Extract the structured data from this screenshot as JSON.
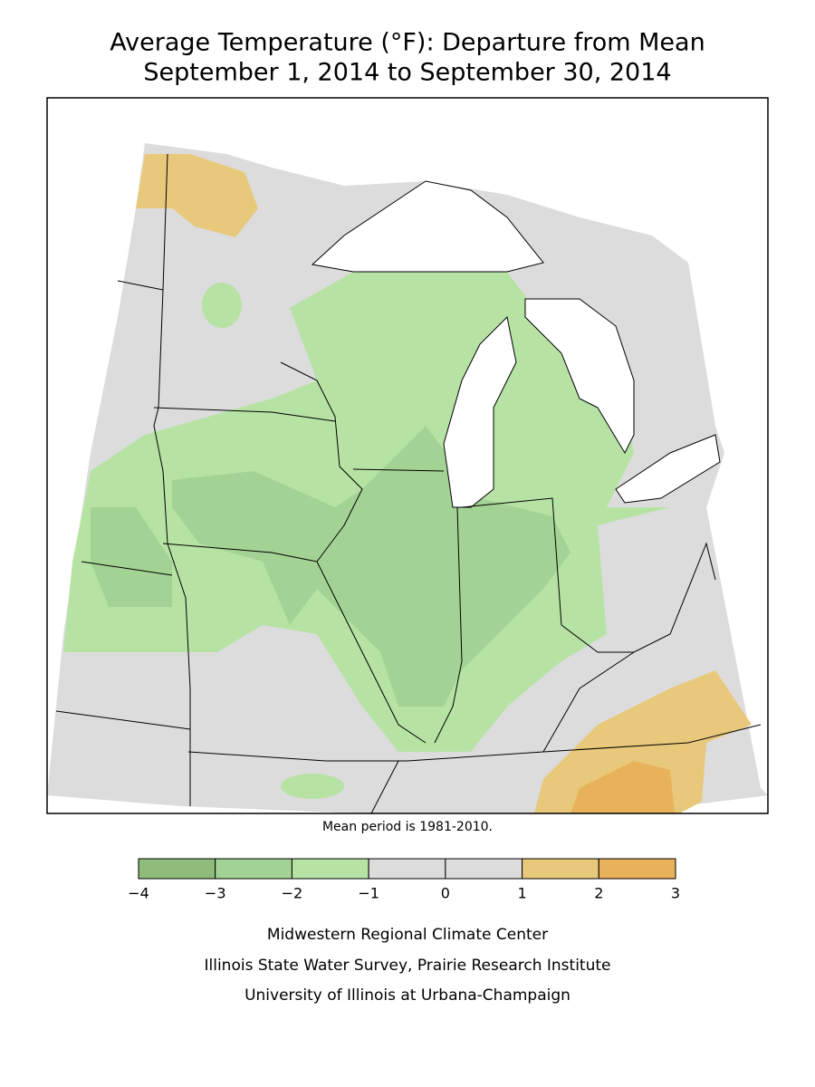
{
  "header": {
    "title": "Average Temperature (°F): Departure from Mean",
    "subtitle": "September 1, 2014 to September 30, 2014"
  },
  "note": "Mean period is 1981-2010.",
  "legend": {
    "labels": [
      "−4",
      "−3",
      "−2",
      "−1",
      "0",
      "1",
      "2",
      "3"
    ],
    "colors": [
      "#8fbc7a",
      "#a3d394",
      "#b6e3a4",
      "#dcdcdc",
      "#dcdcdc",
      "#e8c87a",
      "#e8b25a"
    ]
  },
  "credits": [
    "Midwestern Regional Climate Center",
    "Illinois State Water Survey, Prairie Research Institute",
    "University of Illinois at Urbana-Champaign"
  ]
}
